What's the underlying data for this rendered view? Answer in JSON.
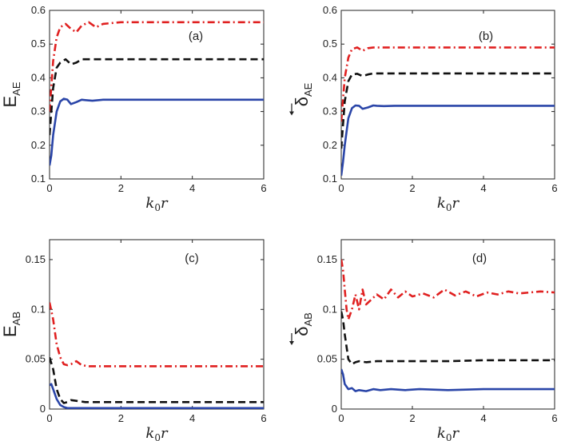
{
  "chart_data": [
    {
      "type": "line",
      "panel_label": "(a)",
      "ylabel": "E",
      "ylabel_sub": "AE",
      "ylabel_arrow": false,
      "xlabel_main": "k",
      "xlabel_sub": "0",
      "xlabel_tail": "r",
      "xlim": [
        0,
        6
      ],
      "ylim": [
        0.1,
        0.6
      ],
      "xticks": [
        "0",
        "2",
        "4",
        "6"
      ],
      "yticks": [
        "0.1",
        "0.2",
        "0.3",
        "0.4",
        "0.5",
        "0.6"
      ],
      "series": [
        {
          "name": "red dash-dot",
          "color": "#e02020",
          "style": "dashdot",
          "x": [
            0,
            0.1,
            0.2,
            0.3,
            0.45,
            0.6,
            0.75,
            0.9,
            1.1,
            1.3,
            1.5,
            2,
            3,
            4,
            5,
            6
          ],
          "y": [
            0.3,
            0.45,
            0.52,
            0.55,
            0.56,
            0.545,
            0.535,
            0.555,
            0.565,
            0.55,
            0.56,
            0.565,
            0.565,
            0.565,
            0.565,
            0.565
          ]
        },
        {
          "name": "black dashed",
          "color": "#111111",
          "style": "dashed",
          "x": [
            0,
            0.1,
            0.2,
            0.3,
            0.45,
            0.6,
            0.75,
            0.9,
            1.1,
            1.5,
            2,
            3,
            4,
            5,
            6
          ],
          "y": [
            0.23,
            0.37,
            0.43,
            0.445,
            0.455,
            0.44,
            0.445,
            0.455,
            0.455,
            0.455,
            0.455,
            0.455,
            0.455,
            0.455,
            0.455
          ]
        },
        {
          "name": "blue solid",
          "color": "#2a45a8",
          "style": "solid",
          "x": [
            0,
            0.05,
            0.1,
            0.2,
            0.3,
            0.4,
            0.5,
            0.6,
            0.75,
            0.9,
            1.0,
            1.2,
            1.5,
            2,
            3,
            4,
            5,
            6
          ],
          "y": [
            0.14,
            0.17,
            0.23,
            0.3,
            0.33,
            0.338,
            0.335,
            0.322,
            0.328,
            0.335,
            0.334,
            0.332,
            0.335,
            0.335,
            0.335,
            0.335,
            0.335,
            0.335
          ]
        }
      ]
    },
    {
      "type": "line",
      "panel_label": "(b)",
      "ylabel": "δ",
      "ylabel_sub": "AE",
      "ylabel_arrow": true,
      "xlabel_main": "k",
      "xlabel_sub": "0",
      "xlabel_tail": "r",
      "xlim": [
        0,
        6
      ],
      "ylim": [
        0.1,
        0.6
      ],
      "xticks": [
        "0",
        "2",
        "4",
        "6"
      ],
      "yticks": [
        "0.1",
        "0.2",
        "0.3",
        "0.4",
        "0.5",
        "0.6"
      ],
      "series": [
        {
          "name": "red dash-dot",
          "color": "#e02020",
          "style": "dashdot",
          "x": [
            0,
            0.1,
            0.2,
            0.3,
            0.45,
            0.6,
            0.75,
            0.9,
            1.2,
            1.5,
            2,
            3,
            4,
            5,
            6
          ],
          "y": [
            0.27,
            0.4,
            0.46,
            0.485,
            0.49,
            0.48,
            0.488,
            0.49,
            0.49,
            0.49,
            0.49,
            0.49,
            0.49,
            0.49,
            0.49
          ]
        },
        {
          "name": "black dashed",
          "color": "#111111",
          "style": "dashed",
          "x": [
            0,
            0.1,
            0.2,
            0.3,
            0.45,
            0.6,
            0.75,
            0.9,
            1.2,
            1.5,
            2,
            3,
            4,
            5,
            6
          ],
          "y": [
            0.19,
            0.33,
            0.39,
            0.41,
            0.412,
            0.405,
            0.41,
            0.413,
            0.413,
            0.413,
            0.413,
            0.413,
            0.413,
            0.413,
            0.413
          ]
        },
        {
          "name": "blue solid",
          "color": "#2a45a8",
          "style": "solid",
          "x": [
            0,
            0.05,
            0.1,
            0.2,
            0.3,
            0.4,
            0.5,
            0.6,
            0.75,
            0.9,
            1.0,
            1.2,
            1.5,
            2,
            3,
            4,
            5,
            6
          ],
          "y": [
            0.11,
            0.15,
            0.2,
            0.28,
            0.31,
            0.318,
            0.317,
            0.308,
            0.312,
            0.318,
            0.317,
            0.316,
            0.317,
            0.317,
            0.317,
            0.317,
            0.317,
            0.317
          ]
        }
      ]
    },
    {
      "type": "line",
      "panel_label": "(c)",
      "ylabel": "E",
      "ylabel_sub": "AB",
      "ylabel_arrow": false,
      "xlabel_main": "k",
      "xlabel_sub": "0",
      "xlabel_tail": "r",
      "xlim": [
        0,
        6
      ],
      "ylim": [
        0,
        0.17
      ],
      "xticks": [
        "0",
        "2",
        "4",
        "6"
      ],
      "yticks": [
        "0",
        "0.05",
        "0.1",
        "0.15"
      ],
      "ytick_values": [
        0,
        0.05,
        0.1,
        0.15
      ],
      "series": [
        {
          "name": "red dash-dot",
          "color": "#e02020",
          "style": "dashdot",
          "x": [
            0,
            0.1,
            0.2,
            0.3,
            0.4,
            0.5,
            0.6,
            0.75,
            0.9,
            1.1,
            1.5,
            2,
            3,
            4,
            5,
            6
          ],
          "y": [
            0.107,
            0.09,
            0.065,
            0.052,
            0.045,
            0.044,
            0.045,
            0.048,
            0.044,
            0.043,
            0.043,
            0.043,
            0.043,
            0.043,
            0.043,
            0.043
          ]
        },
        {
          "name": "black dashed",
          "color": "#111111",
          "style": "dashed",
          "x": [
            0,
            0.1,
            0.2,
            0.3,
            0.4,
            0.5,
            0.6,
            0.8,
            1.0,
            1.5,
            2,
            3,
            4,
            5,
            6
          ],
          "y": [
            0.052,
            0.04,
            0.02,
            0.01,
            0.006,
            0.007,
            0.009,
            0.008,
            0.007,
            0.007,
            0.007,
            0.007,
            0.007,
            0.007,
            0.007
          ]
        },
        {
          "name": "blue solid",
          "color": "#2a45a8",
          "style": "solid",
          "x": [
            0,
            0.05,
            0.1,
            0.2,
            0.3,
            0.4,
            0.5,
            0.7,
            1.0,
            2,
            3,
            4,
            5,
            6
          ],
          "y": [
            0.024,
            0.025,
            0.02,
            0.01,
            0.004,
            0.002,
            0.001,
            0.001,
            0.001,
            0.001,
            0.001,
            0.001,
            0.001,
            0.001
          ]
        }
      ]
    },
    {
      "type": "line",
      "panel_label": "(d)",
      "ylabel": "δ",
      "ylabel_sub": "AB",
      "ylabel_arrow": true,
      "xlabel_main": "k",
      "xlabel_sub": "0",
      "xlabel_tail": "r",
      "xlim": [
        0,
        6
      ],
      "ylim": [
        0,
        0.17
      ],
      "xticks": [
        "0",
        "2",
        "4",
        "6"
      ],
      "yticks": [
        "0",
        "0.05",
        "0.1",
        "0.15"
      ],
      "ytick_values": [
        0,
        0.05,
        0.1,
        0.15
      ],
      "series": [
        {
          "name": "red dash-dot",
          "color": "#e02020",
          "style": "dashdot",
          "x": [
            0,
            0.05,
            0.1,
            0.15,
            0.2,
            0.3,
            0.4,
            0.5,
            0.6,
            0.7,
            0.85,
            1.0,
            1.2,
            1.4,
            1.6,
            1.8,
            2.0,
            2.3,
            2.6,
            2.9,
            3.2,
            3.5,
            3.8,
            4.1,
            4.4,
            4.7,
            5.0,
            5.3,
            5.6,
            6.0
          ],
          "y": [
            0.15,
            0.14,
            0.12,
            0.1,
            0.09,
            0.1,
            0.115,
            0.1,
            0.12,
            0.105,
            0.11,
            0.115,
            0.11,
            0.12,
            0.112,
            0.118,
            0.113,
            0.116,
            0.112,
            0.12,
            0.114,
            0.118,
            0.113,
            0.117,
            0.115,
            0.118,
            0.116,
            0.117,
            0.118,
            0.117
          ]
        },
        {
          "name": "black dashed",
          "color": "#111111",
          "style": "dashed",
          "x": [
            0,
            0.05,
            0.1,
            0.2,
            0.3,
            0.4,
            0.5,
            0.7,
            1.0,
            1.5,
            2,
            3,
            4,
            5,
            6
          ],
          "y": [
            0.098,
            0.09,
            0.075,
            0.05,
            0.045,
            0.047,
            0.048,
            0.047,
            0.048,
            0.048,
            0.048,
            0.048,
            0.049,
            0.049,
            0.049
          ]
        },
        {
          "name": "blue solid",
          "color": "#2a45a8",
          "style": "solid",
          "x": [
            0,
            0.05,
            0.1,
            0.2,
            0.3,
            0.4,
            0.5,
            0.7,
            0.9,
            1.1,
            1.4,
            1.8,
            2.2,
            3,
            4,
            5,
            6
          ],
          "y": [
            0.04,
            0.035,
            0.025,
            0.02,
            0.021,
            0.018,
            0.019,
            0.018,
            0.02,
            0.019,
            0.02,
            0.019,
            0.02,
            0.019,
            0.02,
            0.02,
            0.02
          ]
        }
      ]
    }
  ]
}
